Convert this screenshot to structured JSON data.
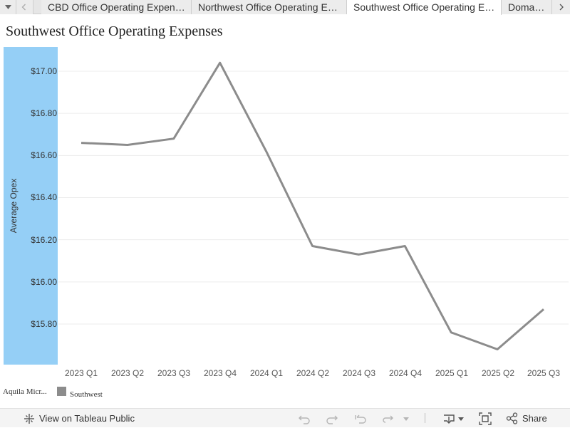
{
  "tabs": {
    "items": [
      {
        "label": "CBD Office Operating Expenses",
        "active": false
      },
      {
        "label": "Northwest Office Operating Ex...",
        "active": false
      },
      {
        "label": "Southwest Office Operating Ex...",
        "active": true
      },
      {
        "label": "Domain O",
        "active": false
      }
    ]
  },
  "page": {
    "title": "Southwest Office Operating Expenses"
  },
  "chart_data": {
    "type": "line",
    "title": "Southwest Office Operating Expenses",
    "xlabel": "",
    "ylabel": "Average Opex",
    "categories": [
      "2023 Q1",
      "2023 Q2",
      "2023 Q3",
      "2023 Q4",
      "2024 Q1",
      "2024 Q2",
      "2024 Q3",
      "2024 Q4",
      "2025 Q1",
      "2025 Q2",
      "2025 Q3"
    ],
    "series": [
      {
        "name": "Southwest",
        "color": "#8c8c8c",
        "values": [
          16.66,
          16.65,
          16.68,
          17.04,
          16.62,
          16.17,
          16.13,
          16.17,
          15.76,
          15.68,
          15.87
        ]
      }
    ],
    "yticks": [
      "$15.80",
      "$16.00",
      "$16.20",
      "$16.40",
      "$16.60",
      "$16.80",
      "$17.00"
    ],
    "ytick_values": [
      15.8,
      16.0,
      16.2,
      16.4,
      16.6,
      16.8,
      17.0
    ],
    "ylim": [
      15.63,
      17.12
    ],
    "grid": true,
    "legend": "bottom-left"
  },
  "legend": {
    "title": "Aquila Micr...",
    "items": [
      {
        "label": "Southwest",
        "color": "#8c8c8c"
      }
    ]
  },
  "toolbar": {
    "view_label": "View on Tableau Public",
    "share_label": "Share"
  },
  "colors": {
    "axis_band": "#95cff6",
    "line": "#8c8c8c",
    "grid": "#ececec"
  }
}
